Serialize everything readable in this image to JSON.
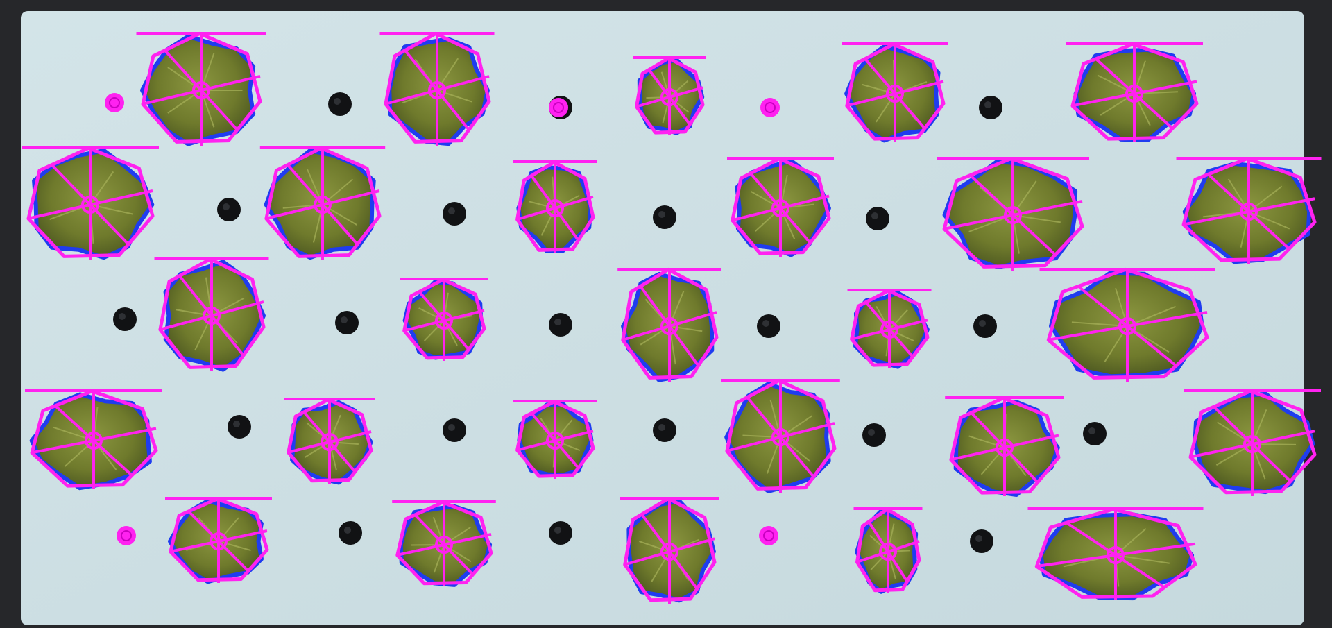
{
  "image": {
    "kind": "photo",
    "subject": "hydroponic-tray-with-plant-outlines"
  },
  "colors": {
    "tray_frame": "#26272a",
    "foam_board": "#cfe0e4",
    "foam_board_shade": "#bcd0d6",
    "plant_leaf": "#6f7a2c",
    "plant_leaf_dark": "#4a5520",
    "plant_edge": "#1f3cf0",
    "overlay": "#ff22f0",
    "hole": "#111214"
  }
}
